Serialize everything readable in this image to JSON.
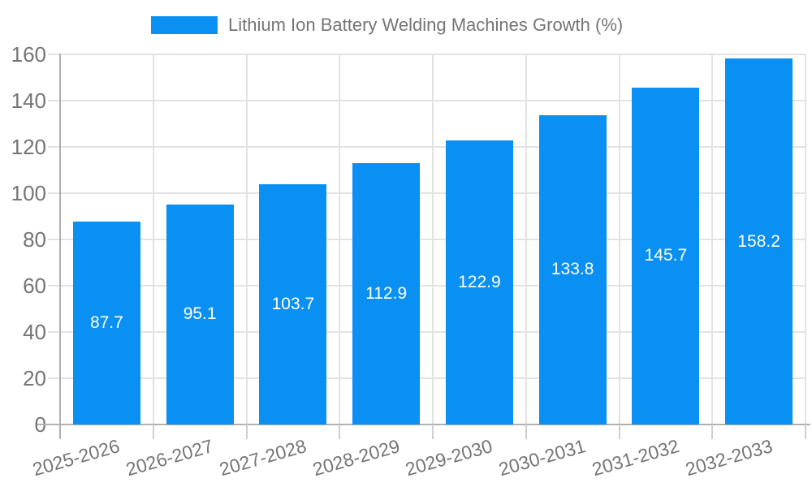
{
  "chart_data": {
    "type": "bar",
    "title": "",
    "legend_position": "top",
    "categories": [
      "2025-2026",
      "2026-2027",
      "2027-2028",
      "2028-2029",
      "2029-2030",
      "2030-2031",
      "2031-2032",
      "2032-2033"
    ],
    "series": [
      {
        "name": "Lithium Ion Battery Welding Machines Growth (%)",
        "values": [
          87.7,
          95.1,
          103.7,
          112.9,
          122.9,
          133.8,
          145.7,
          158.2
        ]
      }
    ],
    "value_labels": [
      "87.7",
      "95.1",
      "103.7",
      "112.9",
      "122.9",
      "133.8",
      "145.7",
      "158.2"
    ],
    "xlabel": "",
    "ylabel": "",
    "ylim": [
      0,
      160
    ],
    "yticks": [
      0,
      20,
      40,
      60,
      80,
      100,
      120,
      140,
      160
    ],
    "ytick_labels": [
      "0",
      "20",
      "40",
      "60",
      "80",
      "100",
      "120",
      "140",
      "160"
    ],
    "grid": true,
    "colors": {
      "bar": "#0a8ff2",
      "value_label": "#ffffff",
      "axis_label": "#757575",
      "legend_text": "#757575",
      "gridline": "#e3e3e3",
      "axis_line": "#b0b0b0",
      "minor_tick": "#cfcfcf",
      "background": "#ffffff"
    }
  }
}
